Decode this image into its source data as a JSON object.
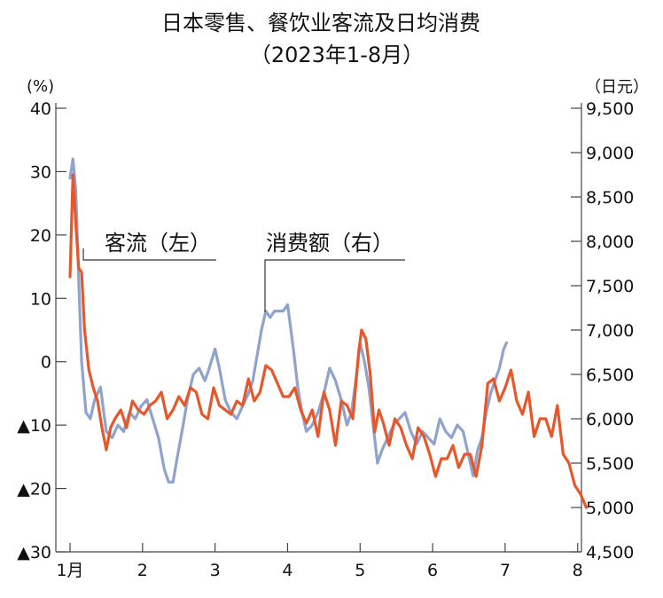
{
  "chart_data": {
    "type": "line",
    "title": "日本零售、餐饮业客流及日均消费",
    "subtitle": "（2023年1-8月）",
    "y_left": {
      "unit": "(%)",
      "range": [
        -30,
        40
      ],
      "ticks": [
        40,
        30,
        20,
        10,
        0,
        -10,
        -20,
        -30
      ],
      "tick_labels": [
        "40",
        "30",
        "20",
        "10",
        "0",
        "▲10",
        "▲20",
        "▲30"
      ]
    },
    "y_right": {
      "unit": "（日元）",
      "range": [
        4500,
        9500
      ],
      "ticks": [
        9500,
        9000,
        8500,
        8000,
        7500,
        7000,
        6500,
        6000,
        5500,
        5000,
        4500
      ],
      "tick_labels": [
        "9,500",
        "9,000",
        "8,500",
        "8,000",
        "7,500",
        "7,000",
        "6,500",
        "6,000",
        "5,500",
        "5,000",
        "4,500"
      ]
    },
    "x_axis": {
      "range": [
        1,
        8.15
      ],
      "ticks": [
        1,
        2,
        3,
        4,
        5,
        6,
        7,
        8
      ],
      "tick_labels": [
        "1月",
        "2",
        "3",
        "4",
        "5",
        "6",
        "7",
        "8"
      ]
    },
    "grid": false,
    "series": [
      {
        "name": "客流（左）",
        "axis": "left",
        "color": "#8fa3cc",
        "x": [
          1.0,
          1.04,
          1.08,
          1.12,
          1.16,
          1.22,
          1.28,
          1.34,
          1.42,
          1.5,
          1.58,
          1.66,
          1.74,
          1.82,
          1.9,
          1.98,
          2.06,
          2.14,
          2.22,
          2.3,
          2.36,
          2.42,
          2.48,
          2.56,
          2.62,
          2.7,
          2.78,
          2.86,
          2.92,
          3.0,
          3.06,
          3.14,
          3.22,
          3.3,
          3.38,
          3.46,
          3.52,
          3.58,
          3.64,
          3.7,
          3.76,
          3.82,
          3.88,
          3.94,
          4.0,
          4.08,
          4.14,
          4.2,
          4.26,
          4.34,
          4.42,
          4.5,
          4.58,
          4.66,
          4.74,
          4.82,
          4.88,
          4.94,
          5.0,
          5.06,
          5.12,
          5.18,
          5.24,
          5.3,
          5.38,
          5.46,
          5.54,
          5.62,
          5.7,
          5.78,
          5.86,
          5.94,
          6.02,
          6.1,
          6.18,
          6.26,
          6.34,
          6.42,
          6.5,
          6.56,
          6.62,
          6.68,
          6.74,
          6.8,
          6.86,
          6.92,
          6.98,
          7.02
        ],
        "values": [
          29,
          32,
          27,
          13,
          0,
          -8,
          -9,
          -6,
          -4,
          -11,
          -12,
          -10,
          -11,
          -8,
          -9,
          -7,
          -6,
          -9,
          -12,
          -17,
          -19,
          -19,
          -15,
          -10,
          -6,
          -2,
          -1,
          -3,
          -1,
          2,
          -1,
          -6,
          -8,
          -9,
          -7,
          -5,
          -3,
          1,
          5,
          8,
          7,
          8,
          8,
          8,
          9,
          2,
          -4,
          -8,
          -11,
          -10,
          -8,
          -5,
          -1,
          -3,
          -6,
          -10,
          -8,
          -3,
          3,
          0,
          -4,
          -10,
          -16,
          -14,
          -12,
          -10,
          -9,
          -8,
          -11,
          -13,
          -11,
          -12,
          -13,
          -9,
          -11,
          -12,
          -10,
          -11,
          -15,
          -18,
          -14,
          -12,
          -8,
          -5,
          -3,
          -1,
          2,
          3
        ]
      },
      {
        "name": "消费额（右）",
        "axis": "right",
        "color": "#e8572a",
        "x": [
          1.0,
          1.04,
          1.08,
          1.12,
          1.16,
          1.2,
          1.26,
          1.32,
          1.38,
          1.44,
          1.5,
          1.56,
          1.62,
          1.7,
          1.78,
          1.86,
          1.94,
          2.02,
          2.1,
          2.18,
          2.26,
          2.34,
          2.42,
          2.5,
          2.58,
          2.66,
          2.74,
          2.82,
          2.9,
          2.98,
          3.06,
          3.14,
          3.22,
          3.3,
          3.38,
          3.46,
          3.54,
          3.62,
          3.7,
          3.78,
          3.86,
          3.94,
          4.02,
          4.1,
          4.18,
          4.26,
          4.34,
          4.42,
          4.5,
          4.58,
          4.66,
          4.74,
          4.82,
          4.9,
          4.98,
          5.02,
          5.08,
          5.14,
          5.2,
          5.26,
          5.32,
          5.4,
          5.48,
          5.56,
          5.64,
          5.72,
          5.8,
          5.88,
          5.96,
          6.04,
          6.12,
          6.2,
          6.28,
          6.36,
          6.44,
          6.52,
          6.6,
          6.68,
          6.76,
          6.84,
          6.92,
          7.0,
          7.08,
          7.16,
          7.24,
          7.32,
          7.4,
          7.48,
          7.56,
          7.64,
          7.72,
          7.8,
          7.88,
          7.96,
          8.04,
          8.12
        ],
        "values": [
          7600,
          8750,
          8200,
          7700,
          7650,
          7000,
          6550,
          6350,
          6200,
          5900,
          5650,
          5900,
          6000,
          6100,
          5900,
          6200,
          6100,
          6050,
          6150,
          6200,
          6300,
          6000,
          6100,
          6250,
          6150,
          6350,
          6300,
          6050,
          6000,
          6350,
          6150,
          6100,
          6050,
          6200,
          6150,
          6450,
          6200,
          6300,
          6600,
          6550,
          6400,
          6250,
          6250,
          6350,
          6100,
          5950,
          6100,
          5800,
          6300,
          6100,
          5700,
          6200,
          6150,
          6000,
          6750,
          7000,
          6900,
          6500,
          5850,
          6100,
          5950,
          5700,
          6000,
          5900,
          5700,
          5550,
          5900,
          5800,
          5600,
          5350,
          5550,
          5550,
          5700,
          5450,
          5600,
          5600,
          5350,
          5700,
          6400,
          6450,
          6200,
          6350,
          6550,
          6200,
          6050,
          6300,
          5800,
          6000,
          6000,
          5800,
          6150,
          5600,
          5500,
          5250,
          5150,
          5000
        ]
      }
    ],
    "annotations": [
      {
        "text": "客流（左）",
        "series": "客流（左）"
      },
      {
        "text": "消费额（右）",
        "series": "消费额（右）"
      }
    ]
  }
}
